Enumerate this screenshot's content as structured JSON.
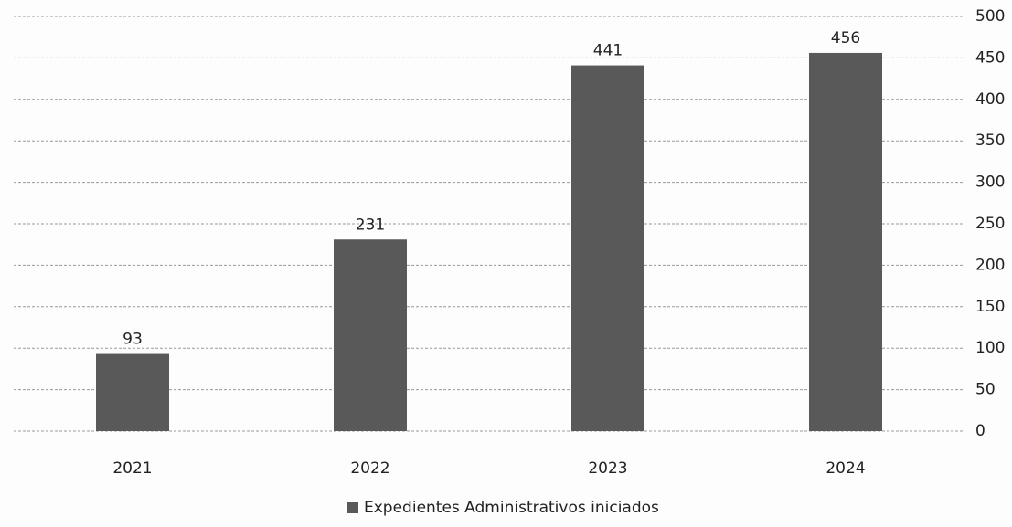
{
  "chart_data": {
    "type": "bar",
    "categories": [
      "2021",
      "2022",
      "2023",
      "2024"
    ],
    "series": [
      {
        "name": "Expedientes Administrativos iniciados",
        "color": "#595959",
        "values": [
          93,
          231,
          441,
          456
        ]
      }
    ],
    "ylim": [
      0,
      500
    ],
    "yticks": [
      0,
      50,
      100,
      150,
      200,
      250,
      300,
      350,
      400,
      450,
      500
    ],
    "grid": true,
    "legend": "bottom"
  }
}
